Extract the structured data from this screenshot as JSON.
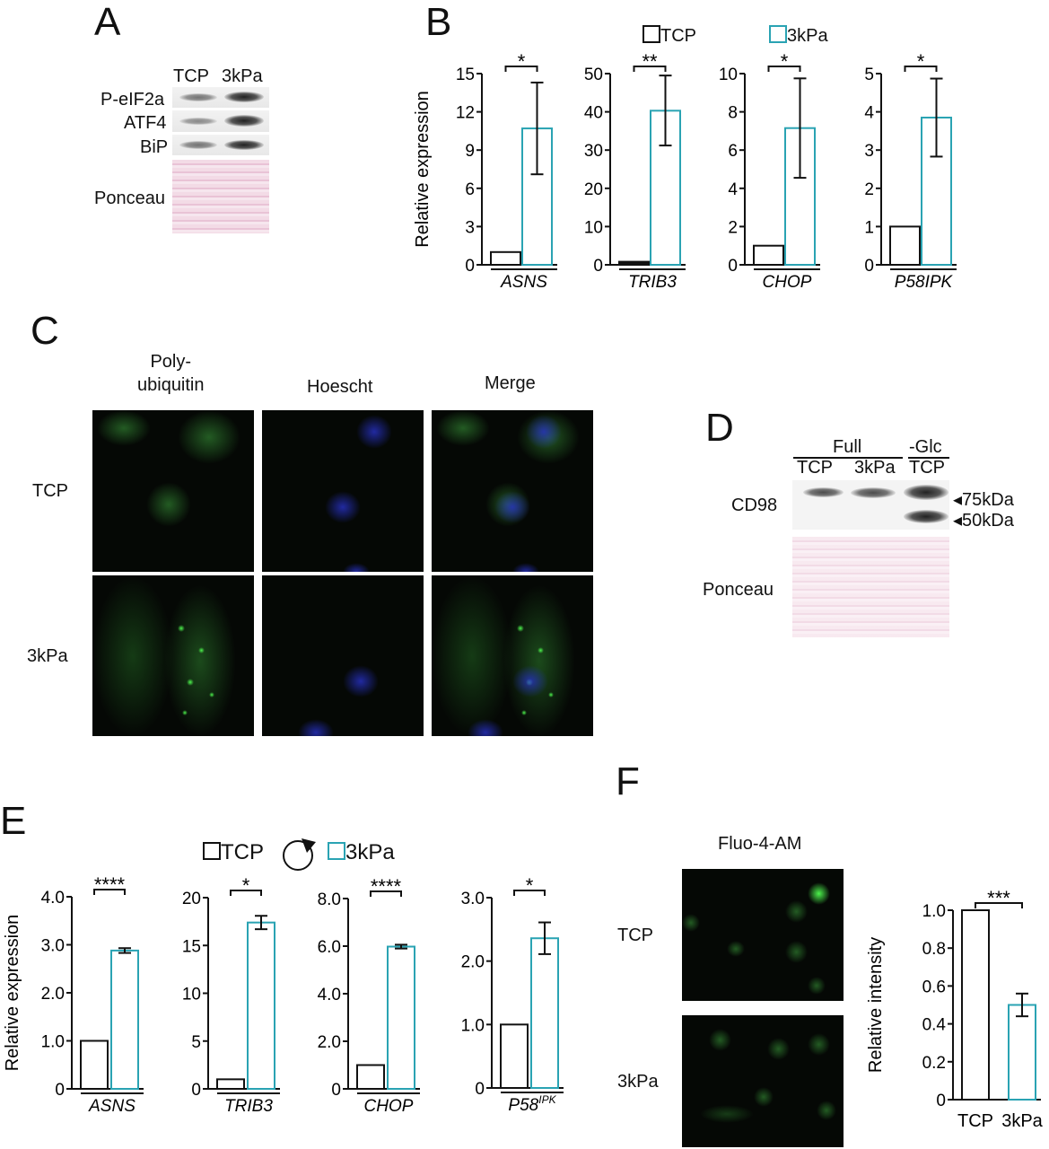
{
  "panel_labels": {
    "a": "A",
    "b": "B",
    "c": "C",
    "d": "D",
    "e": "E",
    "f": "F"
  },
  "panel_a": {
    "lanes": [
      "TCP",
      "3kPa"
    ],
    "rows": [
      "P-eIF2a",
      "ATF4",
      "BiP",
      "Ponceau"
    ]
  },
  "panel_c": {
    "columns": [
      "Poly-\nubiquitin",
      "Hoescht",
      "Merge"
    ],
    "rows": [
      "TCP",
      "3kPa"
    ]
  },
  "panel_d": {
    "group_full": "Full",
    "group_glc": "-Glc",
    "lanes": [
      "TCP",
      "3kPa",
      "TCP"
    ],
    "rows": [
      "CD98",
      "Ponceau"
    ],
    "markers": [
      "75kDa",
      "50kDa"
    ]
  },
  "panel_f": {
    "image_title": "Fluo-4-AM",
    "rows": [
      "TCP",
      "3kPa"
    ]
  },
  "legend_b": {
    "tcp": "TCP",
    "kpa": "3kPa"
  },
  "legend_e": {
    "tcp": "TCP",
    "kpa": "3kPa",
    "icon": "circular-arrow-icon"
  },
  "colors": {
    "tcp": "#111111",
    "kpa": "#2aa3b3"
  },
  "chart_data": [
    {
      "panel": "B",
      "type": "bar",
      "ylabel": "Relative expression",
      "gene": "ASNS",
      "ylim": [
        0,
        15
      ],
      "ticks": [
        "0",
        "3",
        "6",
        "9",
        "12",
        "15"
      ],
      "tickvals": [
        0,
        3,
        6,
        9,
        12,
        15
      ],
      "series": [
        {
          "name": "TCP",
          "value": 1
        },
        {
          "name": "3kPa",
          "value": 10.7,
          "err": [
            7.1,
            14.3
          ]
        }
      ],
      "sig": "*"
    },
    {
      "panel": "B",
      "type": "bar",
      "gene": "TRIB3",
      "ylim": [
        0,
        50
      ],
      "ticks": [
        "0",
        "10",
        "20",
        "30",
        "40",
        "50"
      ],
      "tickvals": [
        0,
        10,
        20,
        30,
        40,
        50
      ],
      "series": [
        {
          "name": "TCP",
          "value": 0.8
        },
        {
          "name": "3kPa",
          "value": 40.3,
          "err": [
            31.2,
            49.5
          ]
        }
      ],
      "sig": "**"
    },
    {
      "panel": "B",
      "type": "bar",
      "gene": "CHOP",
      "ylim": [
        0,
        10
      ],
      "ticks": [
        "0",
        "2",
        "4",
        "6",
        "8",
        "10"
      ],
      "tickvals": [
        0,
        2,
        4,
        6,
        8,
        10
      ],
      "series": [
        {
          "name": "TCP",
          "value": 1
        },
        {
          "name": "3kPa",
          "value": 7.15,
          "err": [
            4.55,
            9.75
          ]
        }
      ],
      "sig": "*"
    },
    {
      "panel": "B",
      "type": "bar",
      "gene": "P58IPK",
      "ylim": [
        0,
        5
      ],
      "ticks": [
        "0",
        "1",
        "2",
        "3",
        "4",
        "5"
      ],
      "tickvals": [
        0,
        1,
        2,
        3,
        4,
        5
      ],
      "series": [
        {
          "name": "TCP",
          "value": 1
        },
        {
          "name": "3kPa",
          "value": 3.85,
          "err": [
            2.83,
            4.87
          ]
        }
      ],
      "sig": "*"
    },
    {
      "panel": "E",
      "type": "bar",
      "ylabel": "Relative expression",
      "gene": "ASNS",
      "ylim": [
        0,
        4
      ],
      "ticks": [
        "0",
        "1.0",
        "2.0",
        "3.0",
        "4.0"
      ],
      "tickvals": [
        0,
        1,
        2,
        3,
        4
      ],
      "series": [
        {
          "name": "TCP",
          "value": 1
        },
        {
          "name": "3kPa",
          "value": 2.88,
          "err": [
            2.83,
            2.93
          ]
        }
      ],
      "sig": "****"
    },
    {
      "panel": "E",
      "type": "bar",
      "gene": "TRIB3",
      "ylim": [
        0,
        20
      ],
      "ticks": [
        "0",
        "5",
        "10",
        "15",
        "20"
      ],
      "tickvals": [
        0,
        5,
        10,
        15,
        20
      ],
      "series": [
        {
          "name": "TCP",
          "value": 1
        },
        {
          "name": "3kPa",
          "value": 17.4,
          "err": [
            16.7,
            18.1
          ]
        }
      ],
      "sig": "*"
    },
    {
      "panel": "E",
      "type": "bar",
      "gene": "CHOP",
      "ylim": [
        0,
        8
      ],
      "ticks": [
        "0",
        "2.0",
        "4.0",
        "6.0",
        "8.0"
      ],
      "tickvals": [
        0,
        2,
        4,
        6,
        8
      ],
      "series": [
        {
          "name": "TCP",
          "value": 1
        },
        {
          "name": "3kPa",
          "value": 5.98,
          "err": [
            5.9,
            6.06
          ]
        }
      ],
      "sig": "****"
    },
    {
      "panel": "E",
      "type": "bar",
      "gene": "P58",
      "gene_sup": "IPK",
      "ylim": [
        0,
        3
      ],
      "ticks": [
        "0",
        "1.0",
        "2.0",
        "3.0"
      ],
      "tickvals": [
        0,
        1,
        2,
        3
      ],
      "series": [
        {
          "name": "TCP",
          "value": 1
        },
        {
          "name": "3kPa",
          "value": 2.36,
          "err": [
            2.11,
            2.61
          ]
        }
      ],
      "sig": "*"
    },
    {
      "panel": "F",
      "type": "bar",
      "ylabel": "Relative intensity",
      "categories": [
        "TCP",
        "3kPa"
      ],
      "ylim": [
        0,
        1
      ],
      "ticks": [
        "0",
        "0.2",
        "0.4",
        "0.6",
        "0.8",
        "1.0"
      ],
      "tickvals": [
        0,
        0.2,
        0.4,
        0.6,
        0.8,
        1.0
      ],
      "series": [
        {
          "name": "TCP",
          "value": 1
        },
        {
          "name": "3kPa",
          "value": 0.5,
          "err": [
            0.44,
            0.56
          ]
        }
      ],
      "sig": "***"
    }
  ]
}
